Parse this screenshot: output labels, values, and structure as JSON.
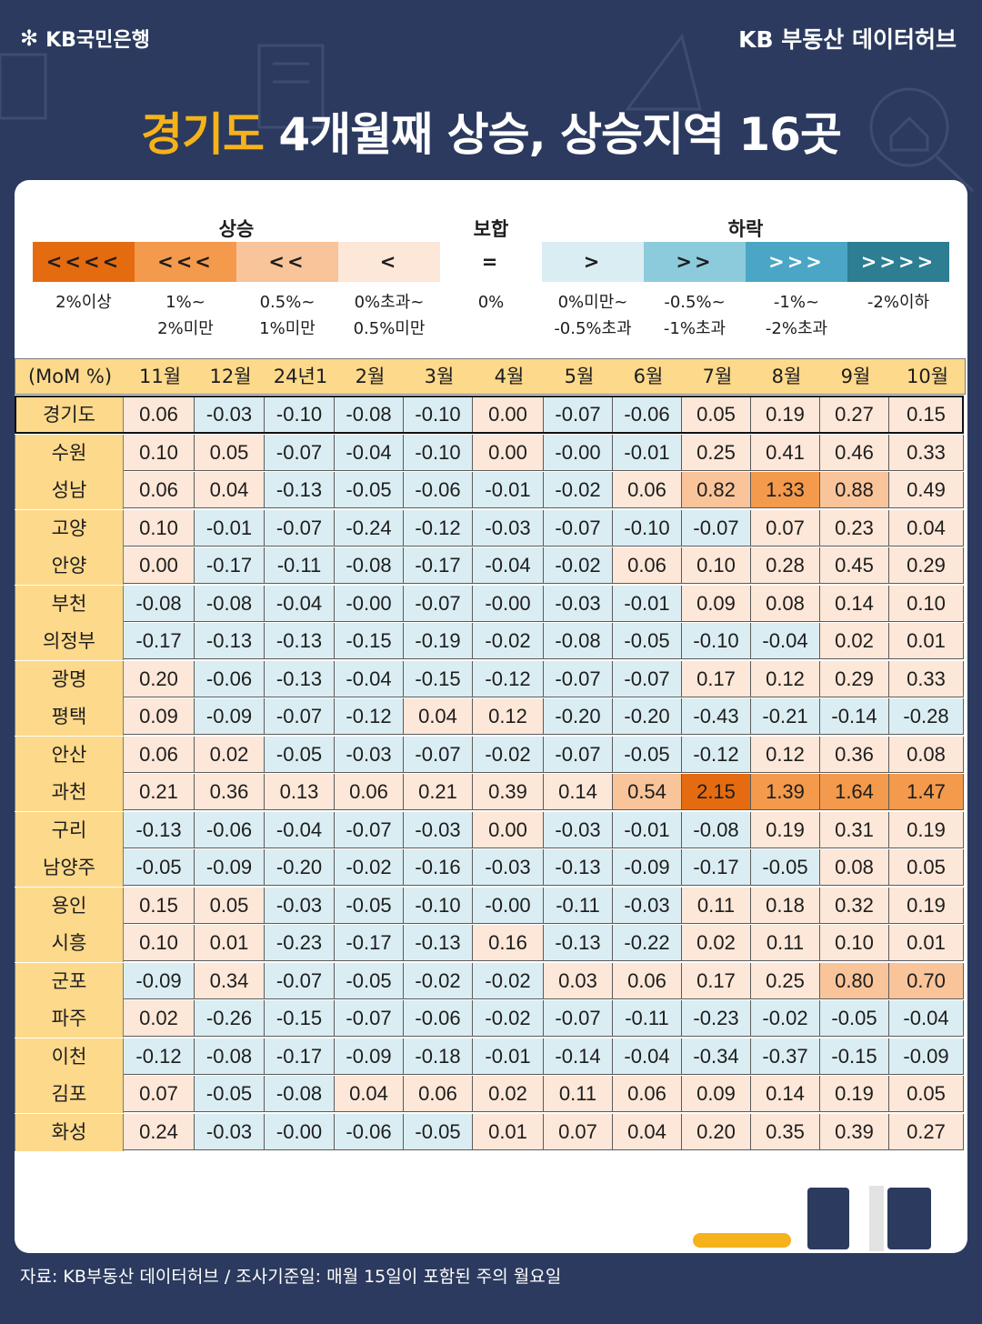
{
  "header": {
    "logo_text": "KB국민은행",
    "brand": "KB 부동산  데이터허브",
    "title_highlight": "경기도",
    "title_rest": " 4개월째 상승, 상승지역 16곳"
  },
  "legend": {
    "groups": {
      "up": "상승",
      "flat": "보합",
      "down": "하락"
    },
    "items": [
      {
        "symbol": "<<<<",
        "desc1": "2%이상",
        "desc2": "",
        "color": "#e56b10",
        "text_color": "#1d1d1d"
      },
      {
        "symbol": "<<<",
        "desc1": "1%~",
        "desc2": "2%미만",
        "color": "#f39a4c",
        "text_color": "#1d1d1d"
      },
      {
        "symbol": "<<",
        "desc1": "0.5%~",
        "desc2": "1%미만",
        "color": "#f9c49a",
        "text_color": "#1d1d1d"
      },
      {
        "symbol": "<",
        "desc1": "0%초과~",
        "desc2": "0.5%미만",
        "color": "#fde7d8",
        "text_color": "#1d1d1d"
      },
      {
        "symbol": "=",
        "desc1": "0%",
        "desc2": "",
        "color": "#ffffff",
        "text_color": "#1d1d1d"
      },
      {
        "symbol": ">",
        "desc1": "0%미만~",
        "desc2": "-0.5%초과",
        "color": "#daedf2",
        "text_color": "#1d1d1d"
      },
      {
        "symbol": ">>",
        "desc1": "-0.5%~",
        "desc2": "-1%초과",
        "color": "#8ccbdc",
        "text_color": "#1d1d1d"
      },
      {
        "symbol": ">>>",
        "desc1": "-1%~",
        "desc2": "-2%초과",
        "color": "#4aa6c4",
        "text_color": "#ffffff"
      },
      {
        "symbol": ">>>>",
        "desc1": "-2%이하",
        "desc2": "",
        "color": "#2d7d93",
        "text_color": "#ffffff"
      }
    ]
  },
  "table": {
    "corner": "(MoM %)",
    "columns": [
      "11월",
      "12월",
      "24년1월",
      "2월",
      "3월",
      "4월",
      "5월",
      "6월",
      "7월",
      "8월",
      "9월",
      "10월"
    ],
    "rows": [
      {
        "name": "경기도",
        "values": [
          "0.06",
          "-0.03",
          "-0.10",
          "-0.08",
          "-0.10",
          "0.00",
          "-0.07",
          "-0.06",
          "0.05",
          "0.19",
          "0.27",
          "0.15"
        ]
      },
      {
        "name": "수원",
        "values": [
          "0.10",
          "0.05",
          "-0.07",
          "-0.04",
          "-0.10",
          "0.00",
          "-0.00",
          "-0.01",
          "0.25",
          "0.41",
          "0.46",
          "0.33"
        ]
      },
      {
        "name": "성남",
        "values": [
          "0.06",
          "0.04",
          "-0.13",
          "-0.05",
          "-0.06",
          "-0.01",
          "-0.02",
          "0.06",
          "0.82",
          "1.33",
          "0.88",
          "0.49"
        ]
      },
      {
        "name": "고양",
        "values": [
          "0.10",
          "-0.01",
          "-0.07",
          "-0.24",
          "-0.12",
          "-0.03",
          "-0.07",
          "-0.10",
          "-0.07",
          "0.07",
          "0.23",
          "0.04"
        ]
      },
      {
        "name": "안양",
        "values": [
          "0.00",
          "-0.17",
          "-0.11",
          "-0.08",
          "-0.17",
          "-0.04",
          "-0.02",
          "0.06",
          "0.10",
          "0.28",
          "0.45",
          "0.29"
        ]
      },
      {
        "name": "부천",
        "values": [
          "-0.08",
          "-0.08",
          "-0.04",
          "-0.00",
          "-0.07",
          "-0.00",
          "-0.03",
          "-0.01",
          "0.09",
          "0.08",
          "0.14",
          "0.10"
        ]
      },
      {
        "name": "의정부",
        "values": [
          "-0.17",
          "-0.13",
          "-0.13",
          "-0.15",
          "-0.19",
          "-0.02",
          "-0.08",
          "-0.05",
          "-0.10",
          "-0.04",
          "0.02",
          "0.01"
        ]
      },
      {
        "name": "광명",
        "values": [
          "0.20",
          "-0.06",
          "-0.13",
          "-0.04",
          "-0.15",
          "-0.12",
          "-0.07",
          "-0.07",
          "0.17",
          "0.12",
          "0.29",
          "0.33"
        ]
      },
      {
        "name": "평택",
        "values": [
          "0.09",
          "-0.09",
          "-0.07",
          "-0.12",
          "0.04",
          "0.12",
          "-0.20",
          "-0.20",
          "-0.43",
          "-0.21",
          "-0.14",
          "-0.28"
        ]
      },
      {
        "name": "안산",
        "values": [
          "0.06",
          "0.02",
          "-0.05",
          "-0.03",
          "-0.07",
          "-0.02",
          "-0.07",
          "-0.05",
          "-0.12",
          "0.12",
          "0.36",
          "0.08"
        ]
      },
      {
        "name": "과천",
        "values": [
          "0.21",
          "0.36",
          "0.13",
          "0.06",
          "0.21",
          "0.39",
          "0.14",
          "0.54",
          "2.15",
          "1.39",
          "1.64",
          "1.47"
        ]
      },
      {
        "name": "구리",
        "values": [
          "-0.13",
          "-0.06",
          "-0.04",
          "-0.07",
          "-0.03",
          "0.00",
          "-0.03",
          "-0.01",
          "-0.08",
          "0.19",
          "0.31",
          "0.19"
        ]
      },
      {
        "name": "남양주",
        "values": [
          "-0.05",
          "-0.09",
          "-0.20",
          "-0.02",
          "-0.16",
          "-0.03",
          "-0.13",
          "-0.09",
          "-0.17",
          "-0.05",
          "0.08",
          "0.05"
        ]
      },
      {
        "name": "용인",
        "values": [
          "0.15",
          "0.05",
          "-0.03",
          "-0.05",
          "-0.10",
          "-0.00",
          "-0.11",
          "-0.03",
          "0.11",
          "0.18",
          "0.32",
          "0.19"
        ]
      },
      {
        "name": "시흥",
        "values": [
          "0.10",
          "0.01",
          "-0.23",
          "-0.17",
          "-0.13",
          "0.16",
          "-0.13",
          "-0.22",
          "0.02",
          "0.11",
          "0.10",
          "0.01"
        ]
      },
      {
        "name": "군포",
        "values": [
          "-0.09",
          "0.34",
          "-0.07",
          "-0.05",
          "-0.02",
          "-0.02",
          "0.03",
          "0.06",
          "0.17",
          "0.25",
          "0.80",
          "0.70"
        ]
      },
      {
        "name": "파주",
        "values": [
          "0.02",
          "-0.26",
          "-0.15",
          "-0.07",
          "-0.06",
          "-0.02",
          "-0.07",
          "-0.11",
          "-0.23",
          "-0.02",
          "-0.05",
          "-0.04"
        ]
      },
      {
        "name": "이천",
        "values": [
          "-0.12",
          "-0.08",
          "-0.17",
          "-0.09",
          "-0.18",
          "-0.01",
          "-0.14",
          "-0.04",
          "-0.34",
          "-0.37",
          "-0.15",
          "-0.09"
        ]
      },
      {
        "name": "김포",
        "values": [
          "0.07",
          "-0.05",
          "-0.08",
          "0.04",
          "0.06",
          "0.02",
          "0.11",
          "0.06",
          "0.09",
          "0.14",
          "0.19",
          "0.05"
        ]
      },
      {
        "name": "화성",
        "values": [
          "0.24",
          "-0.03",
          "-0.00",
          "-0.06",
          "-0.05",
          "0.01",
          "0.07",
          "0.04",
          "0.20",
          "0.35",
          "0.39",
          "0.27"
        ]
      }
    ]
  },
  "footer": {
    "source": "자료: KB부동산 데이터허브 / 조사기준일: 매월 15일이 포함된 주의 월요일"
  },
  "colors": {
    "background": "#2b3a5e",
    "accent": "#f5b21b",
    "header_fill": "#fdd98b"
  }
}
